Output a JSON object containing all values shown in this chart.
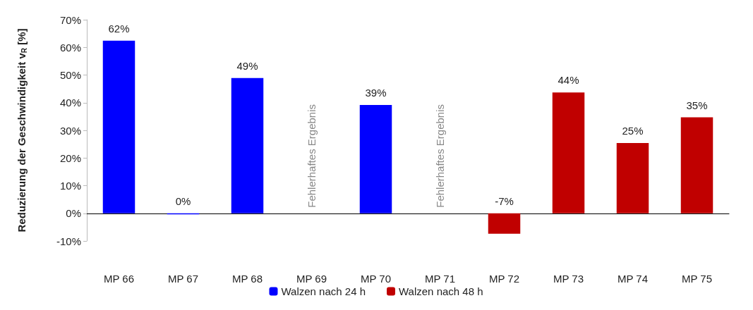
{
  "chart_data": {
    "type": "bar",
    "ylabel": "Reduzierung der Geschwindigkeit v$_{R}$ [%]",
    "categories": [
      "MP 66",
      "MP 67",
      "MP 68",
      "MP 69",
      "MP 70",
      "MP 71",
      "MP 72",
      "MP 73",
      "MP 74",
      "MP 75"
    ],
    "series": [
      {
        "name": "Walzen nach 24 h",
        "color": "#0000ff",
        "values": [
          62.4,
          -0.4,
          48.9,
          null,
          39.2,
          null,
          null,
          null,
          null,
          null
        ],
        "value_labels": [
          "62%",
          "0%",
          "49%",
          null,
          "39%",
          null,
          null,
          null,
          null,
          null
        ]
      },
      {
        "name": "Walzen nach 48 h",
        "color": "#c00000",
        "values": [
          null,
          null,
          null,
          null,
          null,
          null,
          -7.4,
          43.7,
          25.4,
          34.7
        ],
        "value_labels": [
          null,
          null,
          null,
          null,
          null,
          null,
          "-7%",
          "44%",
          "25%",
          "35%"
        ]
      }
    ],
    "ylim": [
      -10,
      70
    ],
    "yticks": [
      {
        "value": -10,
        "label": "-10%"
      },
      {
        "value": 0,
        "label": "0%"
      },
      {
        "value": 10,
        "label": "10%"
      },
      {
        "value": 20,
        "label": "20%"
      },
      {
        "value": 30,
        "label": "30%"
      },
      {
        "value": 40,
        "label": "40%"
      },
      {
        "value": 50,
        "label": "50%"
      },
      {
        "value": 60,
        "label": "60%"
      },
      {
        "value": 70,
        "label": "70%"
      }
    ],
    "annotations": [
      "Fehlerhaftes Ergebnis",
      "Fehlerhaftes Ergebnis"
    ],
    "legend": "bottom"
  }
}
